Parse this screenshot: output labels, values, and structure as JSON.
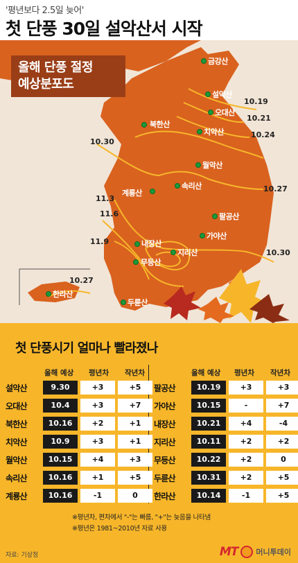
{
  "header": {
    "subtitle": "'평년보다 2.5일 늦어'",
    "title": "첫 단풍 30일 설악산서 시작"
  },
  "map": {
    "badge_line1": "올해 단풍 절정",
    "badge_line2": "예상분포도",
    "mountains": {
      "geumgang": "금강산",
      "seorak": "설악산",
      "odae": "오대산",
      "bukhan": "북한산",
      "chiak": "치악산",
      "worak": "월악산",
      "songni": "속리산",
      "gyeryong": "계룡산",
      "palgong": "팔공산",
      "gaya": "가야산",
      "naejang": "내장산",
      "jiri": "지리산",
      "mudeung": "무등산",
      "duryun": "두륜산",
      "halla": "한라산"
    },
    "isolines": {
      "d1019": "10.19",
      "d1021": "10.21",
      "d1024": "10.24",
      "d1030a": "10.30",
      "d1027a": "10.27",
      "d113": "11.3",
      "d116": "11.6",
      "d119": "11.9",
      "d1030b": "10.30",
      "d1027b": "10.27"
    },
    "colors": {
      "land": "#d9621f",
      "sea": "#f1e5d7",
      "isoline": "#f7b62a",
      "marker": "#1a9a3a"
    }
  },
  "table": {
    "title": "첫 단풍시기 얼마나 빨라졌나",
    "headers": {
      "pred": "올해 예상",
      "avg": "평년차",
      "last": "작년차"
    },
    "left": [
      {
        "name": "설악산",
        "pred": "9.30",
        "avg": "+3",
        "last": "+5"
      },
      {
        "name": "오대산",
        "pred": "10.4",
        "avg": "+3",
        "last": "+7"
      },
      {
        "name": "북한산",
        "pred": "10.16",
        "avg": "+2",
        "last": "+1"
      },
      {
        "name": "치악산",
        "pred": "10.9",
        "avg": "+3",
        "last": "+1"
      },
      {
        "name": "월악산",
        "pred": "10.15",
        "avg": "+4",
        "last": "+3"
      },
      {
        "name": "속리산",
        "pred": "10.16",
        "avg": "+1",
        "last": "+5"
      },
      {
        "name": "계룡산",
        "pred": "10.16",
        "avg": "-1",
        "last": "0"
      }
    ],
    "right": [
      {
        "name": "팔공산",
        "pred": "10.19",
        "avg": "+3",
        "last": "+3"
      },
      {
        "name": "가야산",
        "pred": "10.15",
        "avg": "-",
        "last": "+7"
      },
      {
        "name": "내장산",
        "pred": "10.21",
        "avg": "+4",
        "last": "-4"
      },
      {
        "name": "지리산",
        "pred": "10.11",
        "avg": "+2",
        "last": "+2"
      },
      {
        "name": "무등산",
        "pred": "10.22",
        "avg": "+2",
        "last": "0"
      },
      {
        "name": "두륜산",
        "pred": "10.31",
        "avg": "+2",
        "last": "+5"
      },
      {
        "name": "한라산",
        "pred": "10.14",
        "avg": "-1",
        "last": "+5"
      }
    ],
    "note1": "※평년차, 편차에서 \"-\"는 빠름, \"+\"는 늦음을 나타냄",
    "note2": "※평년은 1981~2010년 자료 사용"
  },
  "footer": {
    "source": "자료: 기상청",
    "logo_mt": "MT",
    "logo_name": "머니투데이"
  }
}
